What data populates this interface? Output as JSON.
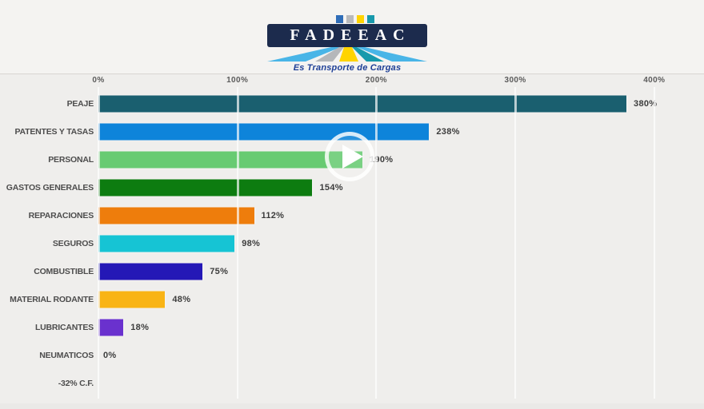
{
  "header": {
    "logo_text": "FADEEAC",
    "tagline": "Es Transporte de Cargas",
    "logo": {
      "navy": "#1c2b4d",
      "bar_colors": [
        "#2f6db8",
        "#b9babc",
        "#ffd400",
        "#1899ac"
      ],
      "stripe_colors": [
        "#49b5e7",
        "#b5b7ba",
        "#ffd400",
        "#1899ac",
        "#49b5e7"
      ],
      "tagline_color": "#1e3f96"
    }
  },
  "player": {
    "icon": "play-icon"
  },
  "chart_data": {
    "type": "bar",
    "orientation": "horizontal",
    "title": "",
    "categories": [
      "PEAJE",
      "PATENTES Y TASAS",
      "PERSONAL",
      "GASTOS GENERALES",
      "REPARACIONES",
      "SEGUROS",
      "COMBUSTIBLE",
      "MATERIAL RODANTE",
      "LUBRICANTES",
      "NEUMATICOS",
      "-32% C.F."
    ],
    "values": [
      380,
      238,
      190,
      154,
      112,
      98,
      75,
      48,
      18,
      0,
      null
    ],
    "value_labels": [
      "380%",
      "238%",
      "190%",
      "154%",
      "112%",
      "98%",
      "75%",
      "48%",
      "18%",
      "0%",
      ""
    ],
    "colors": [
      "#1a5f6f",
      "#0e84da",
      "#68cb72",
      "#0d7c10",
      "#ee7d0c",
      "#16c4d4",
      "#2418b6",
      "#f9b415",
      "#6a31ce",
      null,
      null
    ],
    "x_ticks": [
      "0%",
      "100%",
      "200%",
      "300%",
      "400%"
    ],
    "x_tick_values": [
      0,
      100,
      200,
      300,
      400
    ],
    "xlim": [
      0,
      400
    ],
    "grid": true,
    "legend": false
  }
}
